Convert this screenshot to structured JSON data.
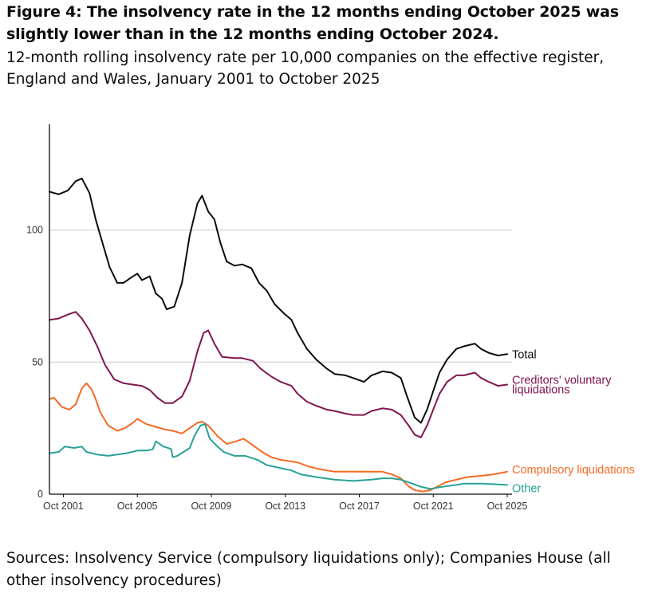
{
  "title": "Figure 4: The insolvency rate in the 12 months ending October 2025 was slightly lower than in the 12 months ending October 2024.",
  "subtitle": "12-month rolling insolvency rate per 10,000 companies on the effective register, England and Wales, January 2001 to October 2025",
  "source": "Sources: Insolvency Service (compulsory liquidations only); Companies House (all other insolvency procedures)",
  "chart_data": {
    "type": "line",
    "x_start": "2001-01",
    "x_end": "2025-10",
    "ylim": [
      0,
      140
    ],
    "grid": true,
    "y_ticks": [
      0,
      50,
      100
    ],
    "x_ticks": [
      {
        "label": "Oct 2001",
        "date": "2001-10"
      },
      {
        "label": "Oct 2005",
        "date": "2005-10"
      },
      {
        "label": "Oct 2009",
        "date": "2009-10"
      },
      {
        "label": "Oct 2013",
        "date": "2013-10"
      },
      {
        "label": "Oct 2017",
        "date": "2017-10"
      },
      {
        "label": "Oct 2021",
        "date": "2021-10"
      },
      {
        "label": "Oct 2025",
        "date": "2025-10"
      }
    ],
    "series": [
      {
        "name": "Total",
        "label_lines": [
          "Total"
        ],
        "color": "#0b0c0c",
        "points": [
          [
            "2001-01",
            114.5
          ],
          [
            "2001-07",
            113.5
          ],
          [
            "2002-01",
            115
          ],
          [
            "2002-06",
            118.5
          ],
          [
            "2002-10",
            119.5
          ],
          [
            "2003-03",
            114
          ],
          [
            "2003-07",
            104
          ],
          [
            "2003-12",
            94
          ],
          [
            "2004-04",
            86
          ],
          [
            "2004-09",
            80
          ],
          [
            "2005-01",
            80
          ],
          [
            "2005-06",
            82
          ],
          [
            "2005-10",
            83.5
          ],
          [
            "2006-01",
            81
          ],
          [
            "2006-06",
            82.5
          ],
          [
            "2006-10",
            76
          ],
          [
            "2007-02",
            74
          ],
          [
            "2007-05",
            70
          ],
          [
            "2007-10",
            71
          ],
          [
            "2008-03",
            80
          ],
          [
            "2008-08",
            98
          ],
          [
            "2009-01",
            110
          ],
          [
            "2009-04",
            113
          ],
          [
            "2009-08",
            107
          ],
          [
            "2009-12",
            104
          ],
          [
            "2010-04",
            95
          ],
          [
            "2010-08",
            88
          ],
          [
            "2011-01",
            86.5
          ],
          [
            "2011-06",
            87
          ],
          [
            "2011-12",
            85.5
          ],
          [
            "2012-05",
            80
          ],
          [
            "2012-10",
            77
          ],
          [
            "2013-03",
            72
          ],
          [
            "2013-09",
            68.5
          ],
          [
            "2014-02",
            66
          ],
          [
            "2014-06",
            61
          ],
          [
            "2014-12",
            55
          ],
          [
            "2015-06",
            51
          ],
          [
            "2016-01",
            47.5
          ],
          [
            "2016-06",
            45.5
          ],
          [
            "2017-01",
            45
          ],
          [
            "2017-06",
            44
          ],
          [
            "2018-01",
            42.5
          ],
          [
            "2018-06",
            45
          ],
          [
            "2019-01",
            46.5
          ],
          [
            "2019-07",
            46
          ],
          [
            "2020-01",
            44
          ],
          [
            "2020-05",
            37
          ],
          [
            "2020-10",
            29
          ],
          [
            "2021-02",
            27
          ],
          [
            "2021-06",
            32
          ],
          [
            "2021-10",
            39
          ],
          [
            "2022-02",
            46
          ],
          [
            "2022-07",
            51
          ],
          [
            "2023-01",
            55
          ],
          [
            "2023-06",
            56
          ],
          [
            "2024-01",
            57
          ],
          [
            "2024-05",
            55
          ],
          [
            "2024-10",
            53.5
          ],
          [
            "2025-04",
            52.5
          ],
          [
            "2025-10",
            53
          ]
        ]
      },
      {
        "name": "Creditors' voluntary liquidations",
        "label_lines": [
          "Creditors' voluntary",
          "liquidations"
        ],
        "color": "#801650",
        "points": [
          [
            "2001-01",
            66
          ],
          [
            "2001-07",
            66.5
          ],
          [
            "2002-01",
            68
          ],
          [
            "2002-06",
            69
          ],
          [
            "2002-10",
            66.5
          ],
          [
            "2003-03",
            62
          ],
          [
            "2003-08",
            56
          ],
          [
            "2004-01",
            49
          ],
          [
            "2004-07",
            43.5
          ],
          [
            "2005-01",
            42
          ],
          [
            "2005-07",
            41.5
          ],
          [
            "2006-01",
            41
          ],
          [
            "2006-06",
            39.5
          ],
          [
            "2006-11",
            36.5
          ],
          [
            "2007-04",
            34.5
          ],
          [
            "2007-09",
            34.5
          ],
          [
            "2008-03",
            37
          ],
          [
            "2008-08",
            43
          ],
          [
            "2009-01",
            54
          ],
          [
            "2009-05",
            61
          ],
          [
            "2009-08",
            62
          ],
          [
            "2009-12",
            57
          ],
          [
            "2010-05",
            52
          ],
          [
            "2011-01",
            51.5
          ],
          [
            "2011-06",
            51.5
          ],
          [
            "2012-01",
            50.5
          ],
          [
            "2012-06",
            47.5
          ],
          [
            "2013-01",
            44.5
          ],
          [
            "2013-07",
            42.5
          ],
          [
            "2014-02",
            41
          ],
          [
            "2014-06",
            38
          ],
          [
            "2014-12",
            35
          ],
          [
            "2015-06",
            33.5
          ],
          [
            "2016-01",
            32
          ],
          [
            "2016-06",
            31.5
          ],
          [
            "2017-01",
            30.5
          ],
          [
            "2017-06",
            30
          ],
          [
            "2018-01",
            30
          ],
          [
            "2018-06",
            31.5
          ],
          [
            "2019-01",
            32.5
          ],
          [
            "2019-07",
            32
          ],
          [
            "2020-01",
            30
          ],
          [
            "2020-06",
            26
          ],
          [
            "2020-10",
            22.5
          ],
          [
            "2021-02",
            21.5
          ],
          [
            "2021-06",
            26
          ],
          [
            "2021-10",
            32
          ],
          [
            "2022-02",
            38
          ],
          [
            "2022-07",
            42.5
          ],
          [
            "2023-01",
            45
          ],
          [
            "2023-06",
            45
          ],
          [
            "2024-01",
            46
          ],
          [
            "2024-05",
            44
          ],
          [
            "2024-10",
            42.5
          ],
          [
            "2025-04",
            41
          ],
          [
            "2025-10",
            41.5
          ]
        ]
      },
      {
        "name": "Compulsory liquidations",
        "label_lines": [
          "Compulsory liquidations"
        ],
        "color": "#f46a25",
        "points": [
          [
            "2001-01",
            36
          ],
          [
            "2001-04",
            36.5
          ],
          [
            "2001-09",
            33
          ],
          [
            "2002-02",
            32
          ],
          [
            "2002-06",
            34
          ],
          [
            "2002-10",
            40
          ],
          [
            "2003-01",
            42
          ],
          [
            "2003-04",
            40
          ],
          [
            "2003-07",
            36
          ],
          [
            "2003-10",
            31
          ],
          [
            "2004-03",
            26
          ],
          [
            "2004-09",
            24
          ],
          [
            "2005-02",
            25
          ],
          [
            "2005-07",
            27
          ],
          [
            "2005-10",
            28.5
          ],
          [
            "2006-04",
            26.5
          ],
          [
            "2006-10",
            25.5
          ],
          [
            "2007-04",
            24.5
          ],
          [
            "2007-09",
            24
          ],
          [
            "2008-03",
            23
          ],
          [
            "2008-08",
            25
          ],
          [
            "2009-01",
            27
          ],
          [
            "2009-04",
            27.5
          ],
          [
            "2009-08",
            26
          ],
          [
            "2010-02",
            22
          ],
          [
            "2010-08",
            19
          ],
          [
            "2011-02",
            20
          ],
          [
            "2011-07",
            21
          ],
          [
            "2012-01",
            18.5
          ],
          [
            "2012-07",
            16
          ],
          [
            "2013-01",
            14
          ],
          [
            "2013-07",
            13
          ],
          [
            "2014-06",
            12
          ],
          [
            "2015-01",
            10.5
          ],
          [
            "2015-08",
            9.5
          ],
          [
            "2016-06",
            8.5
          ],
          [
            "2017-06",
            8.5
          ],
          [
            "2018-06",
            8.5
          ],
          [
            "2019-01",
            8.5
          ],
          [
            "2019-07",
            7.5
          ],
          [
            "2020-01",
            6
          ],
          [
            "2020-06",
            3
          ],
          [
            "2020-10",
            1.5
          ],
          [
            "2021-03",
            1
          ],
          [
            "2021-08",
            1.5
          ],
          [
            "2022-01",
            3
          ],
          [
            "2022-06",
            4.5
          ],
          [
            "2023-01",
            5.5
          ],
          [
            "2023-08",
            6.5
          ],
          [
            "2024-06",
            7
          ],
          [
            "2025-01",
            7.5
          ],
          [
            "2025-10",
            8.5
          ]
        ]
      },
      {
        "name": "Other",
        "label_lines": [
          "Other"
        ],
        "color": "#28a197",
        "points": [
          [
            "2001-01",
            15.5
          ],
          [
            "2001-07",
            16
          ],
          [
            "2001-11",
            18
          ],
          [
            "2002-05",
            17.5
          ],
          [
            "2002-10",
            18
          ],
          [
            "2003-01",
            16
          ],
          [
            "2003-08",
            15
          ],
          [
            "2004-03",
            14.5
          ],
          [
            "2004-09",
            15
          ],
          [
            "2005-03",
            15.5
          ],
          [
            "2005-10",
            16.5
          ],
          [
            "2006-04",
            16.5
          ],
          [
            "2006-08",
            17
          ],
          [
            "2006-10",
            20
          ],
          [
            "2007-03",
            18
          ],
          [
            "2007-06",
            17.5
          ],
          [
            "2007-08",
            17
          ],
          [
            "2007-09",
            14
          ],
          [
            "2007-12",
            14.5
          ],
          [
            "2008-04",
            16
          ],
          [
            "2008-08",
            17.5
          ],
          [
            "2008-11",
            22
          ],
          [
            "2009-03",
            26
          ],
          [
            "2009-06",
            26.5
          ],
          [
            "2009-09",
            21
          ],
          [
            "2010-02",
            18
          ],
          [
            "2010-06",
            16
          ],
          [
            "2011-01",
            14.5
          ],
          [
            "2011-08",
            14.5
          ],
          [
            "2012-04",
            13
          ],
          [
            "2012-10",
            11
          ],
          [
            "2013-06",
            10
          ],
          [
            "2014-02",
            9
          ],
          [
            "2014-08",
            7.5
          ],
          [
            "2015-06",
            6.5
          ],
          [
            "2016-06",
            5.5
          ],
          [
            "2017-06",
            5
          ],
          [
            "2018-06",
            5.5
          ],
          [
            "2019-01",
            6
          ],
          [
            "2019-07",
            6
          ],
          [
            "2020-01",
            5.5
          ],
          [
            "2020-06",
            4.5
          ],
          [
            "2021-01",
            3
          ],
          [
            "2021-08",
            2
          ],
          [
            "2022-01",
            2.5
          ],
          [
            "2022-06",
            3
          ],
          [
            "2023-01",
            3.5
          ],
          [
            "2023-06",
            4
          ],
          [
            "2024-06",
            4
          ],
          [
            "2025-10",
            3.5
          ]
        ]
      }
    ]
  }
}
